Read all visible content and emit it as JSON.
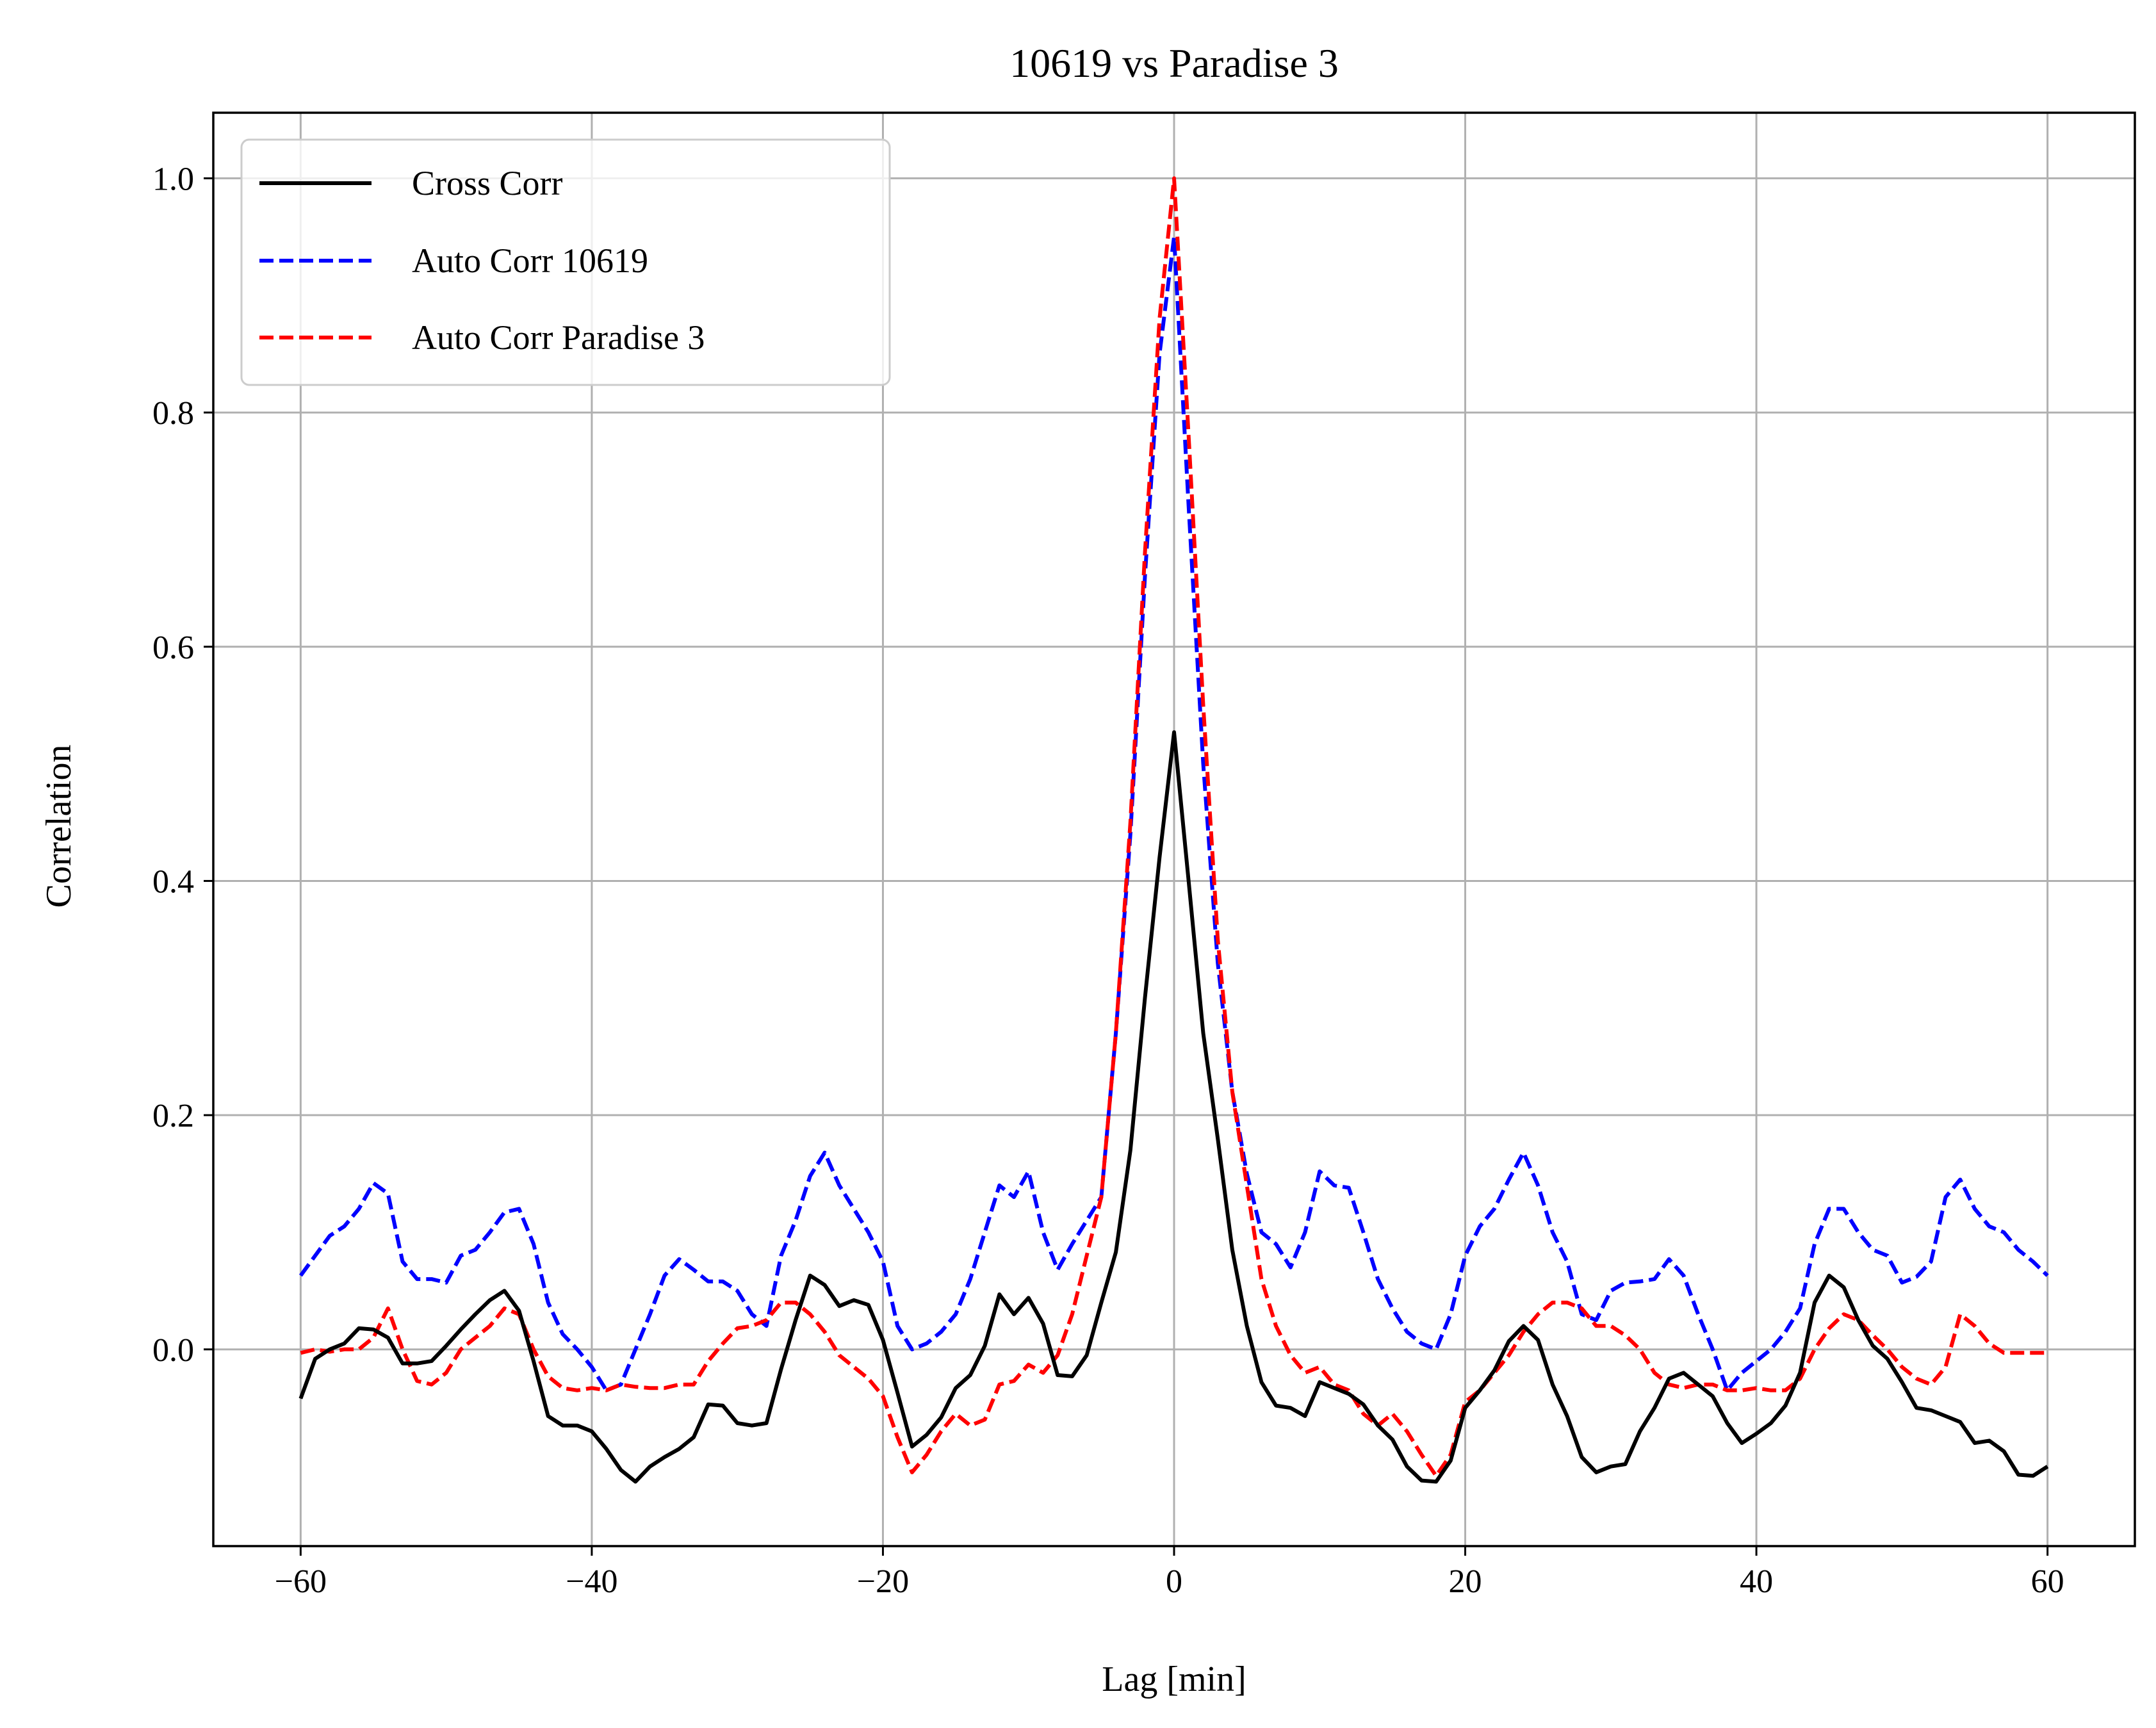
{
  "chart_data": {
    "type": "line",
    "title": "10619 vs Paradise 3",
    "xlabel": "Lag [min]",
    "ylabel": "Correlation",
    "xlim": [
      -66,
      66
    ],
    "ylim": [
      -0.168,
      1.056
    ],
    "xticks": [
      -60,
      -40,
      -20,
      0,
      20,
      40,
      60
    ],
    "xtick_labels": [
      "−60",
      "−40",
      "−20",
      "0",
      "20",
      "40",
      "60"
    ],
    "yticks": [
      0.0,
      0.2,
      0.4,
      0.6,
      0.8,
      1.0
    ],
    "ytick_labels": [
      "0.0",
      "0.2",
      "0.4",
      "0.6",
      "0.8",
      "1.0"
    ],
    "grid": true,
    "legend_position": "top-left",
    "series": [
      {
        "name": "Cross Corr",
        "color": "#000000",
        "style": "solid",
        "x": [
          -60,
          -59,
          -58,
          -57,
          -56,
          -55,
          -54,
          -53,
          -52,
          -51,
          -50,
          -49,
          -48,
          -47,
          -46,
          -45,
          -44,
          -43,
          -42,
          -41,
          -40,
          -39,
          -38,
          -37,
          -36,
          -35,
          -34,
          -33,
          -32,
          -31,
          -30,
          -29,
          -28,
          -27,
          -26,
          -25,
          -24,
          -23,
          -22,
          -21,
          -20,
          -19,
          -18,
          -17,
          -16,
          -15,
          -14,
          -13,
          -12,
          -11,
          -10,
          -9,
          -8,
          -7,
          -6,
          -5,
          -4,
          -3,
          -2,
          -1,
          0,
          1,
          2,
          3,
          4,
          5,
          6,
          7,
          8,
          9,
          10,
          11,
          12,
          13,
          14,
          15,
          16,
          17,
          18,
          19,
          20,
          21,
          22,
          23,
          24,
          25,
          26,
          27,
          28,
          29,
          30,
          31,
          32,
          33,
          34,
          35,
          36,
          37,
          38,
          39,
          40,
          41,
          42,
          43,
          44,
          45,
          46,
          47,
          48,
          49,
          50,
          51,
          52,
          53,
          54,
          55,
          56,
          57,
          58,
          59,
          60
        ],
        "y": [
          -0.042,
          -0.008,
          0.0,
          0.005,
          0.018,
          0.017,
          0.01,
          -0.012,
          -0.012,
          -0.01,
          0.003,
          0.017,
          0.03,
          0.042,
          0.05,
          0.033,
          -0.01,
          -0.057,
          -0.065,
          -0.065,
          -0.07,
          -0.085,
          -0.103,
          -0.113,
          -0.1,
          -0.092,
          -0.085,
          -0.075,
          -0.047,
          -0.048,
          -0.063,
          -0.065,
          -0.063,
          -0.017,
          0.025,
          0.063,
          0.055,
          0.037,
          0.042,
          0.038,
          0.008,
          -0.037,
          -0.083,
          -0.073,
          -0.058,
          -0.033,
          -0.022,
          0.003,
          0.047,
          0.03,
          0.044,
          0.022,
          -0.022,
          -0.023,
          -0.005,
          0.04,
          0.083,
          0.17,
          0.3,
          0.42,
          0.527,
          0.4,
          0.27,
          0.18,
          0.085,
          0.02,
          -0.028,
          -0.048,
          -0.05,
          -0.057,
          -0.028,
          -0.033,
          -0.038,
          -0.047,
          -0.065,
          -0.077,
          -0.1,
          -0.112,
          -0.113,
          -0.095,
          -0.05,
          -0.035,
          -0.018,
          0.007,
          0.02,
          0.008,
          -0.03,
          -0.057,
          -0.092,
          -0.105,
          -0.1,
          -0.098,
          -0.07,
          -0.05,
          -0.025,
          -0.02,
          -0.03,
          -0.04,
          -0.063,
          -0.08,
          -0.072,
          -0.063,
          -0.048,
          -0.02,
          0.04,
          0.063,
          0.053,
          0.025,
          0.003,
          -0.008,
          -0.028,
          -0.05,
          -0.052,
          -0.057,
          -0.062,
          -0.08,
          -0.078,
          -0.087,
          -0.107,
          -0.108,
          -0.1
        ]
      },
      {
        "name": "Auto Corr 10619",
        "color": "#0000ff",
        "style": "dashed",
        "x": [
          -60,
          -59,
          -58,
          -57,
          -56,
          -55,
          -54,
          -53,
          -52,
          -51,
          -50,
          -49,
          -48,
          -47,
          -46,
          -45,
          -44,
          -43,
          -42,
          -41,
          -40,
          -39,
          -38,
          -37,
          -36,
          -35,
          -34,
          -33,
          -32,
          -31,
          -30,
          -29,
          -28,
          -27,
          -26,
          -25,
          -24,
          -23,
          -22,
          -21,
          -20,
          -19,
          -18,
          -17,
          -16,
          -15,
          -14,
          -13,
          -12,
          -11,
          -10,
          -9,
          -8,
          -7,
          -6,
          -5,
          -4,
          -3,
          -2,
          -1,
          0,
          1,
          2,
          3,
          4,
          5,
          6,
          7,
          8,
          9,
          10,
          11,
          12,
          13,
          14,
          15,
          16,
          17,
          18,
          19,
          20,
          21,
          22,
          23,
          24,
          25,
          26,
          27,
          28,
          29,
          30,
          31,
          32,
          33,
          34,
          35,
          36,
          37,
          38,
          39,
          40,
          41,
          42,
          43,
          44,
          45,
          46,
          47,
          48,
          49,
          50,
          51,
          52,
          53,
          54,
          55,
          56,
          57,
          58,
          59,
          60
        ],
        "y": [
          0.063,
          0.08,
          0.097,
          0.105,
          0.12,
          0.142,
          0.133,
          0.075,
          0.06,
          0.06,
          0.057,
          0.08,
          0.085,
          0.1,
          0.117,
          0.12,
          0.09,
          0.04,
          0.013,
          0.0,
          -0.015,
          -0.035,
          -0.03,
          0.0,
          0.03,
          0.063,
          0.077,
          0.068,
          0.058,
          0.058,
          0.05,
          0.03,
          0.02,
          0.08,
          0.11,
          0.148,
          0.168,
          0.14,
          0.12,
          0.1,
          0.075,
          0.02,
          0.0,
          0.005,
          0.015,
          0.03,
          0.06,
          0.1,
          0.14,
          0.13,
          0.152,
          0.1,
          0.068,
          0.09,
          0.11,
          0.13,
          0.27,
          0.44,
          0.66,
          0.85,
          0.95,
          0.72,
          0.5,
          0.33,
          0.22,
          0.15,
          0.1,
          0.09,
          0.07,
          0.1,
          0.152,
          0.14,
          0.138,
          0.1,
          0.06,
          0.035,
          0.015,
          0.005,
          0.0,
          0.03,
          0.08,
          0.105,
          0.12,
          0.145,
          0.168,
          0.14,
          0.1,
          0.075,
          0.03,
          0.025,
          0.05,
          0.057,
          0.058,
          0.06,
          0.077,
          0.063,
          0.03,
          0.0,
          -0.035,
          -0.02,
          -0.01,
          0.0,
          0.015,
          0.035,
          0.09,
          0.12,
          0.12,
          0.1,
          0.085,
          0.08,
          0.057,
          0.062,
          0.075,
          0.13,
          0.145,
          0.12,
          0.105,
          0.1,
          0.085,
          0.075,
          0.063
        ]
      },
      {
        "name": "Auto Corr Paradise 3",
        "color": "#ff0000",
        "style": "dashed",
        "x": [
          -60,
          -59,
          -58,
          -57,
          -56,
          -55,
          -54,
          -53,
          -52,
          -51,
          -50,
          -49,
          -48,
          -47,
          -46,
          -45,
          -44,
          -43,
          -42,
          -41,
          -40,
          -39,
          -38,
          -37,
          -36,
          -35,
          -34,
          -33,
          -32,
          -31,
          -30,
          -29,
          -28,
          -27,
          -26,
          -25,
          -24,
          -23,
          -22,
          -21,
          -20,
          -19,
          -18,
          -17,
          -16,
          -15,
          -14,
          -13,
          -12,
          -11,
          -10,
          -9,
          -8,
          -7,
          -6,
          -5,
          -4,
          -3,
          -2,
          -1,
          0,
          1,
          2,
          3,
          4,
          5,
          6,
          7,
          8,
          9,
          10,
          11,
          12,
          13,
          14,
          15,
          16,
          17,
          18,
          19,
          20,
          21,
          22,
          23,
          24,
          25,
          26,
          27,
          28,
          29,
          30,
          31,
          32,
          33,
          34,
          35,
          36,
          37,
          38,
          39,
          40,
          41,
          42,
          43,
          44,
          45,
          46,
          47,
          48,
          49,
          50,
          51,
          52,
          53,
          54,
          55,
          56,
          57,
          58,
          59,
          60
        ],
        "y": [
          -0.003,
          0.0,
          -0.002,
          0.0,
          0.0,
          0.01,
          0.035,
          0.0,
          -0.027,
          -0.03,
          -0.02,
          0.0,
          0.01,
          0.02,
          0.035,
          0.03,
          0.0,
          -0.023,
          -0.033,
          -0.035,
          -0.033,
          -0.035,
          -0.03,
          -0.032,
          -0.033,
          -0.033,
          -0.03,
          -0.03,
          -0.01,
          0.005,
          0.018,
          0.02,
          0.025,
          0.04,
          0.04,
          0.03,
          0.015,
          -0.005,
          -0.015,
          -0.025,
          -0.04,
          -0.075,
          -0.105,
          -0.09,
          -0.07,
          -0.055,
          -0.065,
          -0.06,
          -0.03,
          -0.027,
          -0.013,
          -0.02,
          -0.005,
          0.03,
          0.08,
          0.13,
          0.27,
          0.45,
          0.68,
          0.88,
          1.0,
          0.78,
          0.55,
          0.35,
          0.22,
          0.14,
          0.06,
          0.02,
          -0.005,
          -0.02,
          -0.015,
          -0.03,
          -0.035,
          -0.055,
          -0.065,
          -0.055,
          -0.07,
          -0.09,
          -0.108,
          -0.09,
          -0.045,
          -0.035,
          -0.02,
          -0.005,
          0.015,
          0.03,
          0.04,
          0.04,
          0.035,
          0.02,
          0.02,
          0.012,
          0.0,
          -0.02,
          -0.03,
          -0.033,
          -0.03,
          -0.03,
          -0.035,
          -0.035,
          -0.033,
          -0.035,
          -0.035,
          -0.025,
          0.0,
          0.018,
          0.03,
          0.025,
          0.012,
          0.0,
          -0.015,
          -0.025,
          -0.03,
          -0.015,
          0.03,
          0.02,
          0.005,
          -0.003,
          -0.003,
          -0.003,
          -0.003
        ]
      }
    ]
  }
}
